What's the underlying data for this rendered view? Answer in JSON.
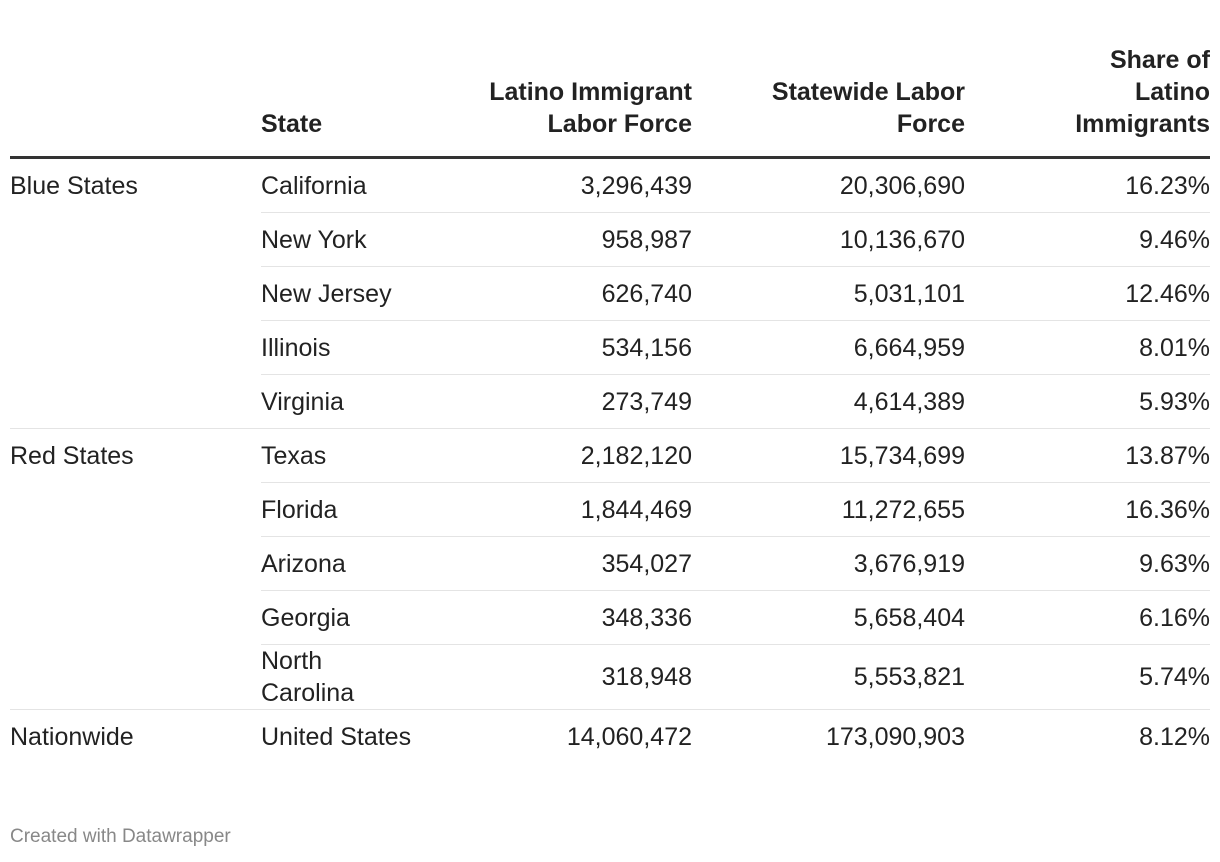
{
  "table": {
    "headers": [
      "",
      "State",
      "Latino Immigrant Labor Force",
      "Statewide Labor Force",
      "Share of Latino Immigrants"
    ],
    "rows": [
      {
        "group": "Blue States",
        "state": "California",
        "latino": "3,296,439",
        "statewide": "20,306,690",
        "share": "16.23%"
      },
      {
        "group": "",
        "state": "New York",
        "latino": "958,987",
        "statewide": "10,136,670",
        "share": "9.46%"
      },
      {
        "group": "",
        "state": "New Jersey",
        "latino": "626,740",
        "statewide": "5,031,101",
        "share": "12.46%"
      },
      {
        "group": "",
        "state": "Illinois",
        "latino": "534,156",
        "statewide": "6,664,959",
        "share": "8.01%"
      },
      {
        "group": "",
        "state": "Virginia",
        "latino": "273,749",
        "statewide": "4,614,389",
        "share": "5.93%"
      },
      {
        "group": "Red States",
        "state": "Texas",
        "latino": "2,182,120",
        "statewide": "15,734,699",
        "share": "13.87%"
      },
      {
        "group": "",
        "state": "Florida",
        "latino": "1,844,469",
        "statewide": "11,272,655",
        "share": "16.36%"
      },
      {
        "group": "",
        "state": "Arizona",
        "latino": "354,027",
        "statewide": "3,676,919",
        "share": "9.63%"
      },
      {
        "group": "",
        "state": "Georgia",
        "latino": "348,336",
        "statewide": "5,658,404",
        "share": "6.16%"
      },
      {
        "group": "",
        "state": "North Carolina",
        "latino": "318,948",
        "statewide": "5,553,821",
        "share": "5.74%"
      },
      {
        "group": "Nationwide",
        "state": "United States",
        "latino": "14,060,472",
        "statewide": "173,090,903",
        "share": "8.12%"
      }
    ]
  },
  "footer": "Created with Datawrapper"
}
